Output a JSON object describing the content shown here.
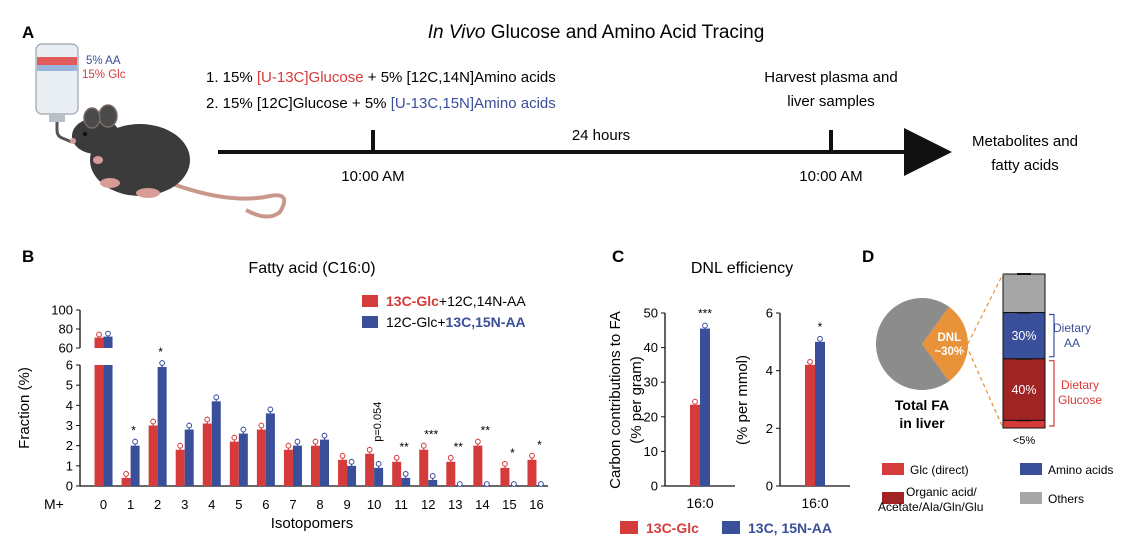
{
  "panel_letters": {
    "a": "A",
    "b": "B",
    "c": "C",
    "d": "D"
  },
  "panel_a": {
    "title_italic": "In Vivo",
    "title_rest": " Glucose and Amino Acid Tracing",
    "bottle_label_aa": "5% AA",
    "bottle_label_glc": "15% Glc",
    "cond1": {
      "prefix": "1. 15% ",
      "tracer": "[U-13C]Glucose",
      "suffix": " + 5% [12C,14N]Amino acids"
    },
    "cond2": {
      "prefix": "2. 15% [12C]Glucose + 5% ",
      "tracer": "[U-13C,15N]Amino acids"
    },
    "start_time": "10:00 AM",
    "end_time": "10:00 AM",
    "duration": "24 hours",
    "harvest_line1": "Harvest plasma and",
    "harvest_line2": "liver samples",
    "outcome_line1": "Metabolites and",
    "outcome_line2": "fatty acids",
    "colors": {
      "glc": "#d63b3b",
      "aa": "#3a4f9a"
    }
  },
  "chart_data": [
    {
      "panel": "B",
      "type": "bar",
      "title": "Fatty acid (C16:0)",
      "xlabel": "Isotopomers",
      "x_prefix": "M+",
      "ylabel": "Fraction (%)",
      "ylim_lower": [
        0,
        6
      ],
      "ylim_upper": [
        60,
        100
      ],
      "yticks_lower": [
        "0",
        "1",
        "2",
        "3",
        "4",
        "5",
        "6"
      ],
      "yticks_upper": [
        "60",
        "80",
        "100"
      ],
      "categories": [
        "0",
        "1",
        "2",
        "3",
        "4",
        "5",
        "6",
        "7",
        "8",
        "9",
        "10",
        "11",
        "12",
        "13",
        "14",
        "15",
        "16"
      ],
      "series": [
        {
          "name": "13C-Glc+12C,14N-AA",
          "color": "#d63b3b",
          "values": [
            71,
            0.4,
            3.0,
            1.8,
            3.1,
            2.2,
            2.8,
            1.8,
            2.0,
            1.3,
            1.6,
            1.2,
            1.8,
            1.2,
            2.0,
            0.9,
            1.3
          ]
        },
        {
          "name": "12C-Glc+13C,15N-AA",
          "color": "#3a4f9a",
          "values": [
            72,
            2.0,
            5.9,
            2.8,
            4.2,
            2.6,
            3.6,
            2.0,
            2.3,
            1.0,
            0.9,
            0.4,
            0.3,
            0.05,
            0.05,
            0.05,
            0.05
          ]
        }
      ],
      "significance": [
        "",
        "*",
        "*",
        "",
        "",
        "",
        "",
        "",
        "",
        "",
        "p=0.054",
        "**",
        "***",
        "**",
        "**",
        "*",
        "*"
      ],
      "legend": [
        {
          "bold": "13C-Glc",
          "rest": "+12C,14N-AA"
        },
        {
          "rest": "12C-Glc+",
          "bold": "13C,15N-AA"
        }
      ]
    },
    {
      "panel": "C",
      "type": "bar",
      "title": "DNL efficiency",
      "subplots": [
        {
          "ylabel_line1": "Carbon contributions to FA",
          "ylabel_line2": "(% per gram)",
          "ylim": [
            0,
            50
          ],
          "yticks": [
            "0",
            "10",
            "20",
            "30",
            "40",
            "50"
          ],
          "category": "16:0",
          "values": [
            23.5,
            45.5
          ],
          "significance": "***"
        },
        {
          "ylabel_line2": "(% per mmol)",
          "ylim": [
            0,
            6
          ],
          "yticks": [
            "0",
            "2",
            "4",
            "6"
          ],
          "category": "16:0",
          "values": [
            4.2,
            5.0
          ],
          "significance": "*"
        }
      ],
      "legend": [
        "13C-Glc",
        "13C, 15N-AA"
      ]
    },
    {
      "panel": "D",
      "type": "pie",
      "pie": {
        "slices": [
          {
            "label": "DNL",
            "value": 30,
            "text": "~30%"
          },
          {
            "label": "Others",
            "value": 70
          }
        ],
        "caption_line1": "Total FA",
        "caption_line2": "in liver"
      },
      "stack": {
        "segments": [
          {
            "name": "Glc (direct)",
            "value": 5,
            "color": "#d63b3b",
            "label": "<5%"
          },
          {
            "name": "Organic acid/Acetate/Ala/Gln/Glu",
            "value": 40,
            "color": "#a02424",
            "label": "40%"
          },
          {
            "name": "Amino acids",
            "value": 30,
            "color": "#3a4f9a",
            "label": "30%"
          },
          {
            "name": "Others",
            "value": 25,
            "color": "#a6a6a6",
            "label": ""
          }
        ],
        "bracket_aa": [
          "Dietary",
          "AA"
        ],
        "bracket_glc": [
          "Dietary",
          "Glucose"
        ]
      },
      "legend": [
        {
          "label": "Glc (direct)",
          "color": "#d63b3b"
        },
        {
          "label": "Amino acids",
          "color": "#3a4f9a"
        },
        {
          "label_line1": "Organic acid/",
          "label_line2": "Acetate/Ala/Gln/Glu",
          "color": "#a02424"
        },
        {
          "label": "Others",
          "color": "#a6a6a6"
        }
      ]
    }
  ]
}
